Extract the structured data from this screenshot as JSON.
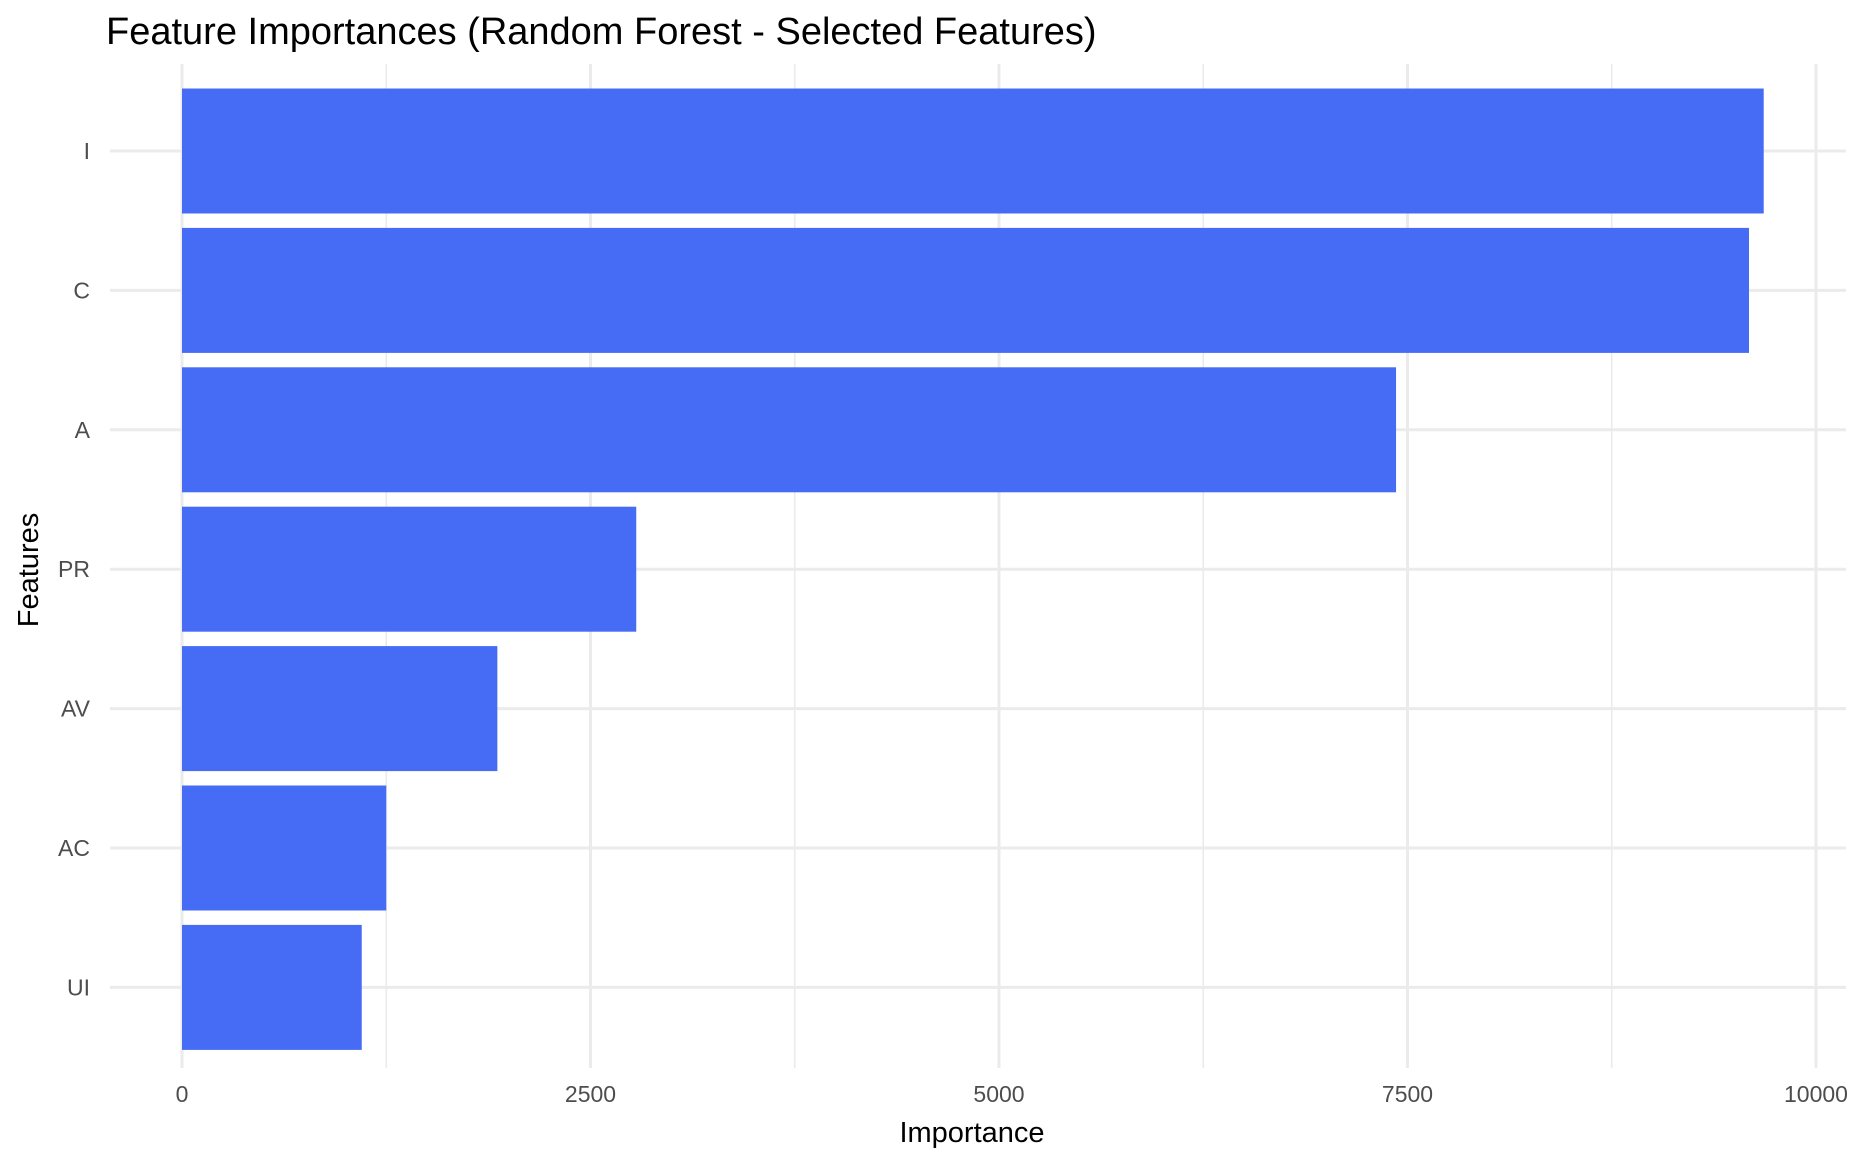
{
  "colors": {
    "bar": "#466cf6",
    "grid": "#ebebeb",
    "tick_text": "#4d4d4d",
    "text": "#000000",
    "background": "#ffffff"
  },
  "chart_data": {
    "type": "bar",
    "orientation": "horizontal",
    "title": "Feature Importances (Random Forest - Selected Features)",
    "xlabel": "Importance",
    "ylabel": "Features",
    "categories": [
      "I",
      "C",
      "A",
      "PR",
      "AV",
      "AC",
      "UI"
    ],
    "values": [
      9680,
      9590,
      7430,
      2780,
      1930,
      1250,
      1100
    ],
    "xlim": [
      0,
      10000
    ],
    "xticks": [
      0,
      2500,
      5000,
      7500,
      10000
    ],
    "xtick_labels": [
      "0",
      "2500",
      "5000",
      "7500",
      "10000"
    ],
    "grid": true,
    "legend": "none"
  }
}
